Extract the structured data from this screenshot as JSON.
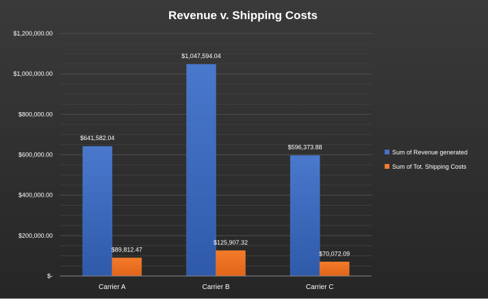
{
  "chart_data": {
    "type": "bar",
    "title": "Revenue v. Shipping Costs",
    "categories": [
      "Carrier A",
      "Carrier B",
      "Carrier C"
    ],
    "series": [
      {
        "name": "Sum of Revenue generated",
        "values": [
          641582.04,
          1047594.04,
          596373.88
        ],
        "labels": [
          "$641,582.04",
          "$1,047,594.04",
          "$596,373.88"
        ],
        "color": "#4472C4"
      },
      {
        "name": "Sum of Tot. Shipping Costs",
        "values": [
          89812.47,
          125907.32,
          70072.09
        ],
        "labels": [
          "$89,812.47",
          "$125,907.32",
          "$70,072.09"
        ],
        "color": "#ED7D31"
      }
    ],
    "y_ticks": [
      {
        "value": 0,
        "label": "$-"
      },
      {
        "value": 200000,
        "label": "$200,000.00"
      },
      {
        "value": 400000,
        "label": "$400,000.00"
      },
      {
        "value": 600000,
        "label": "$600,000.00"
      },
      {
        "value": 800000,
        "label": "$800,000.00"
      },
      {
        "value": 1000000,
        "label": "$1,000,000.00"
      },
      {
        "value": 1200000,
        "label": "$1,200,000.00"
      }
    ],
    "ylim": [
      0,
      1200000
    ],
    "grid": true,
    "legend_position": "right",
    "colors": {
      "background": "#2b2b2b",
      "grid": "#464646",
      "text": "#ffffff"
    }
  }
}
